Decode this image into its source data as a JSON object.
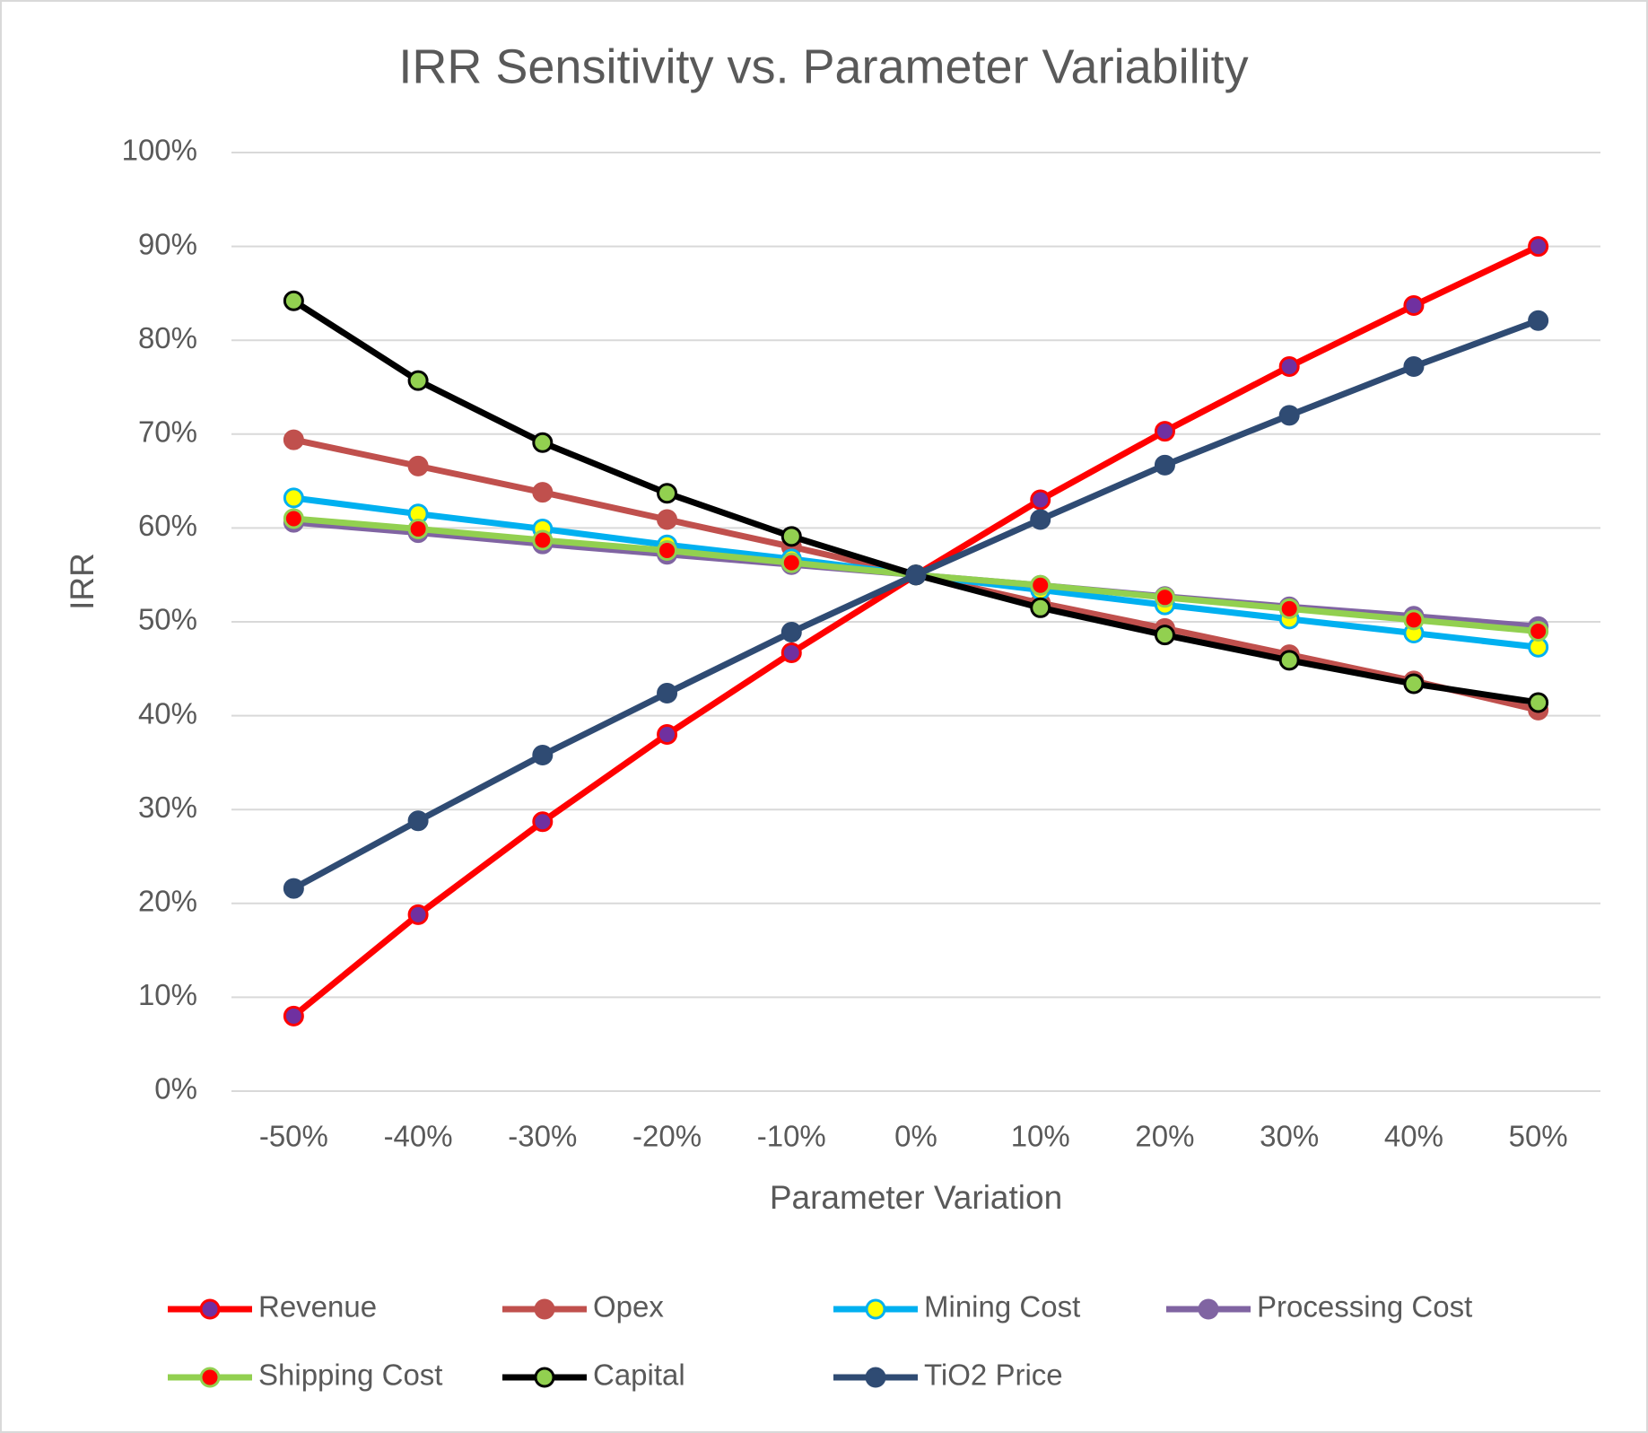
{
  "chart_data": {
    "type": "line",
    "title": "IRR Sensitivity vs. Parameter Variability",
    "x_label": "Parameter Variation",
    "y_label": "IRR",
    "categories": [
      "-50%",
      "-40%",
      "-30%",
      "-20%",
      "-10%",
      "0%",
      "10%",
      "20%",
      "30%",
      "40%",
      "50%"
    ],
    "ylim": [
      0,
      100
    ],
    "yticks": [
      {
        "value": 0,
        "label": "0%"
      },
      {
        "value": 10,
        "label": "10%"
      },
      {
        "value": 20,
        "label": "20%"
      },
      {
        "value": 30,
        "label": "30%"
      },
      {
        "value": 40,
        "label": "40%"
      },
      {
        "value": 50,
        "label": "50%"
      },
      {
        "value": 60,
        "label": "60%"
      },
      {
        "value": 70,
        "label": "70%"
      },
      {
        "value": 80,
        "label": "80%"
      },
      {
        "value": 90,
        "label": "90%"
      },
      {
        "value": 100,
        "label": "100%"
      }
    ],
    "grid": true,
    "series": [
      {
        "name": "Revenue",
        "color": "#ff0000",
        "marker_color": "#7030a0",
        "values": [
          8,
          18.8,
          28.7,
          38,
          46.7,
          55,
          63,
          70.3,
          77.2,
          83.7,
          90
        ]
      },
      {
        "name": "Opex",
        "color": "#c0504d",
        "marker_color": "#c0504d",
        "values": [
          69.4,
          66.6,
          63.8,
          60.9,
          58,
          55,
          52,
          49.3,
          46.5,
          43.7,
          40.6
        ]
      },
      {
        "name": "Mining Cost",
        "color": "#00b0f0",
        "marker_color": "#ffff00",
        "values": [
          63.2,
          61.5,
          59.9,
          58.2,
          56.7,
          55,
          53.4,
          51.8,
          50.3,
          48.8,
          47.3
        ]
      },
      {
        "name": "Processing Cost",
        "color": "#8064a2",
        "marker_color": "#8064a2",
        "values": [
          60.6,
          59.5,
          58.3,
          57.2,
          56.1,
          55,
          53.9,
          52.7,
          51.6,
          50.6,
          49.5
        ]
      },
      {
        "name": "Shipping Cost",
        "color": "#92d050",
        "marker_color": "#ff0000",
        "values": [
          61,
          59.9,
          58.7,
          57.6,
          56.3,
          55,
          53.9,
          52.6,
          51.4,
          50.2,
          49
        ]
      },
      {
        "name": "Capital",
        "color": "#000000",
        "marker_color": "#92d050",
        "values": [
          84.2,
          75.7,
          69.1,
          63.7,
          59.1,
          55,
          51.5,
          48.6,
          45.9,
          43.4,
          41.4
        ]
      },
      {
        "name": "TiO2 Price",
        "color": "#2f4b73",
        "marker_color": "#2f4b73",
        "values": [
          21.6,
          28.8,
          35.8,
          42.4,
          48.9,
          55,
          60.9,
          66.7,
          72,
          77.2,
          82.1
        ]
      }
    ]
  }
}
